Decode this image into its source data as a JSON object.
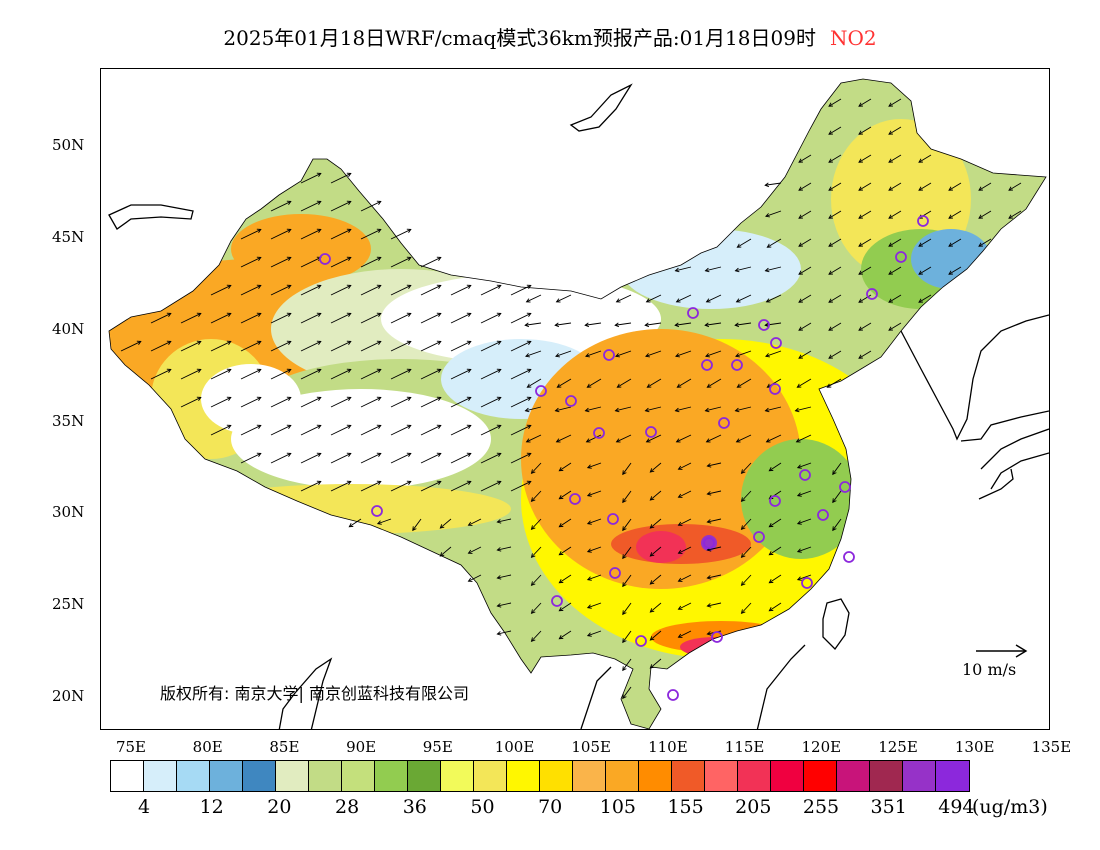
{
  "title": {
    "main": "2025年01月18日WRF/cmaq模式36km预报产品:01月18日09时",
    "variable": "NO2",
    "variable_color": "#ff3333"
  },
  "map": {
    "lon_range": [
      73,
      135
    ],
    "lat_range": [
      18,
      54
    ],
    "lat_ticks": [
      "50N",
      "45N",
      "40N",
      "35N",
      "30N",
      "25N",
      "20N"
    ],
    "lon_ticks": [
      "75E",
      "80E",
      "85E",
      "90E",
      "95E",
      "100E",
      "105E",
      "110E",
      "115E",
      "120E",
      "125E",
      "130E",
      "135E"
    ],
    "copyright": "版权所有: 南京大学| 南京创蓝科技有限公司",
    "wind_key": "10 m/s",
    "wind_key_color": "#000000"
  },
  "colorbar": {
    "colors": [
      "#ffffff",
      "#d6eefa",
      "#a6daf4",
      "#6db1dc",
      "#3f87c0",
      "#e1ecc0",
      "#c2dc86",
      "#c4e07c",
      "#92cc50",
      "#6aa834",
      "#f2fa5a",
      "#f3e658",
      "#fff700",
      "#ffe000",
      "#fab44a",
      "#faa824",
      "#ff8c00",
      "#f05a28",
      "#ff6464",
      "#f23256",
      "#f00040",
      "#ff0000",
      "#c8147a",
      "#a02850",
      "#9632c8",
      "#8c28dc"
    ],
    "labels": [
      "4",
      "12",
      "20",
      "28",
      "36",
      "50",
      "70",
      "105",
      "155",
      "205",
      "255",
      "351",
      "494"
    ],
    "units": "(ug/m3)"
  }
}
